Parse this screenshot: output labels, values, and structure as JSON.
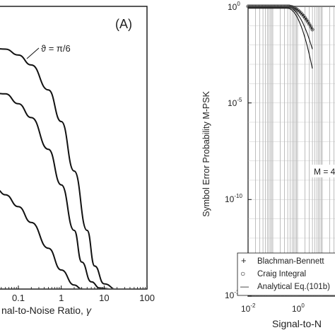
{
  "chart_data": [
    {
      "type": "line",
      "panel_label": "(A)",
      "xlabel": "nal-to-Noise Ratio,",
      "xlabel_symbol": "γ",
      "x_scale": "log",
      "xlim": [
        0.01,
        100
      ],
      "x_ticks": [
        0.1,
        1,
        10,
        100
      ],
      "x_tick_labels": [
        "0.1",
        "1",
        "10",
        "100"
      ],
      "annotation": "ϑ = π/6",
      "series": [
        {
          "x": [
            0.01,
            0.05,
            0.1,
            0.2,
            0.5,
            1,
            2,
            4,
            6,
            10,
            20
          ],
          "y": [
            0.62,
            0.608,
            0.593,
            0.568,
            0.505,
            0.425,
            0.3,
            0.15,
            0.06,
            0.015,
            0.0
          ]
        },
        {
          "x": [
            0.01,
            0.05,
            0.1,
            0.2,
            0.5,
            1,
            2,
            3,
            5,
            8,
            20
          ],
          "y": [
            0.51,
            0.495,
            0.47,
            0.435,
            0.355,
            0.265,
            0.15,
            0.07,
            0.02,
            0.004,
            0.0
          ]
        },
        {
          "x": [
            0.01,
            0.03,
            0.05,
            0.1,
            0.2,
            0.5,
            1,
            2,
            3,
            5
          ],
          "y": [
            0.27,
            0.255,
            0.24,
            0.21,
            0.17,
            0.105,
            0.05,
            0.012,
            0.002,
            0.0
          ]
        }
      ]
    },
    {
      "type": "line",
      "xlabel": "Signal-to-N",
      "ylabel": "Symbol Error Probability M-PSK",
      "x_scale": "log",
      "y_scale": "log",
      "x_ticks": [
        "10",
        "10"
      ],
      "x_tick_exponents": [
        "-2",
        "0"
      ],
      "y_ticks": [
        "10",
        "10",
        "10",
        "10"
      ],
      "y_tick_exponents": [
        "0",
        "-5",
        "-10",
        "-15"
      ],
      "annotation": "M = 4",
      "legend": {
        "position": "bottom-left",
        "entries": [
          {
            "marker": "+",
            "label": "Blachman-Bennett"
          },
          {
            "marker": "○",
            "label": "Craig Integral"
          },
          {
            "marker": "—",
            "label": "Analytical Eq.(101b)"
          }
        ]
      }
    }
  ]
}
